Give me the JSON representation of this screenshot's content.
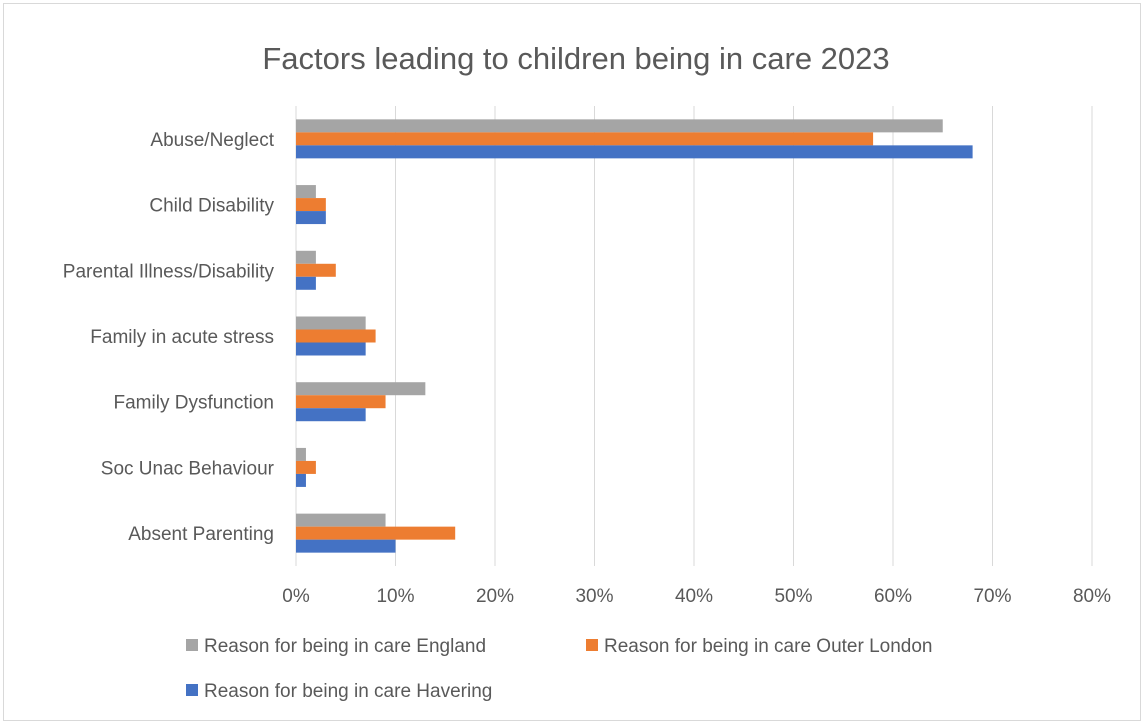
{
  "chart_data": {
    "type": "bar",
    "orientation": "horizontal",
    "title": "Factors leading to children being in care 2023",
    "categories": [
      "Abuse/Neglect",
      "Child Disability",
      "Parental Illness/Disability",
      "Family in acute stress",
      "Family Dysfunction",
      "Soc Unac Behaviour",
      "Absent Parenting"
    ],
    "series": [
      {
        "name": "Reason for being in care England",
        "color": "#a5a5a5",
        "values": [
          0.65,
          0.02,
          0.02,
          0.07,
          0.13,
          0.01,
          0.09
        ]
      },
      {
        "name": "Reason for being in care Outer London",
        "color": "#ed7d31",
        "values": [
          0.58,
          0.03,
          0.04,
          0.08,
          0.09,
          0.02,
          0.16
        ]
      },
      {
        "name": "Reason for being in care Havering",
        "color": "#4472c4",
        "values": [
          0.68,
          0.03,
          0.02,
          0.07,
          0.07,
          0.01,
          0.1
        ]
      }
    ],
    "xlim": [
      0,
      0.8
    ],
    "xticks": [
      "0%",
      "10%",
      "20%",
      "30%",
      "40%",
      "50%",
      "60%",
      "70%",
      "80%"
    ],
    "grid": true,
    "legend_position": "bottom"
  }
}
